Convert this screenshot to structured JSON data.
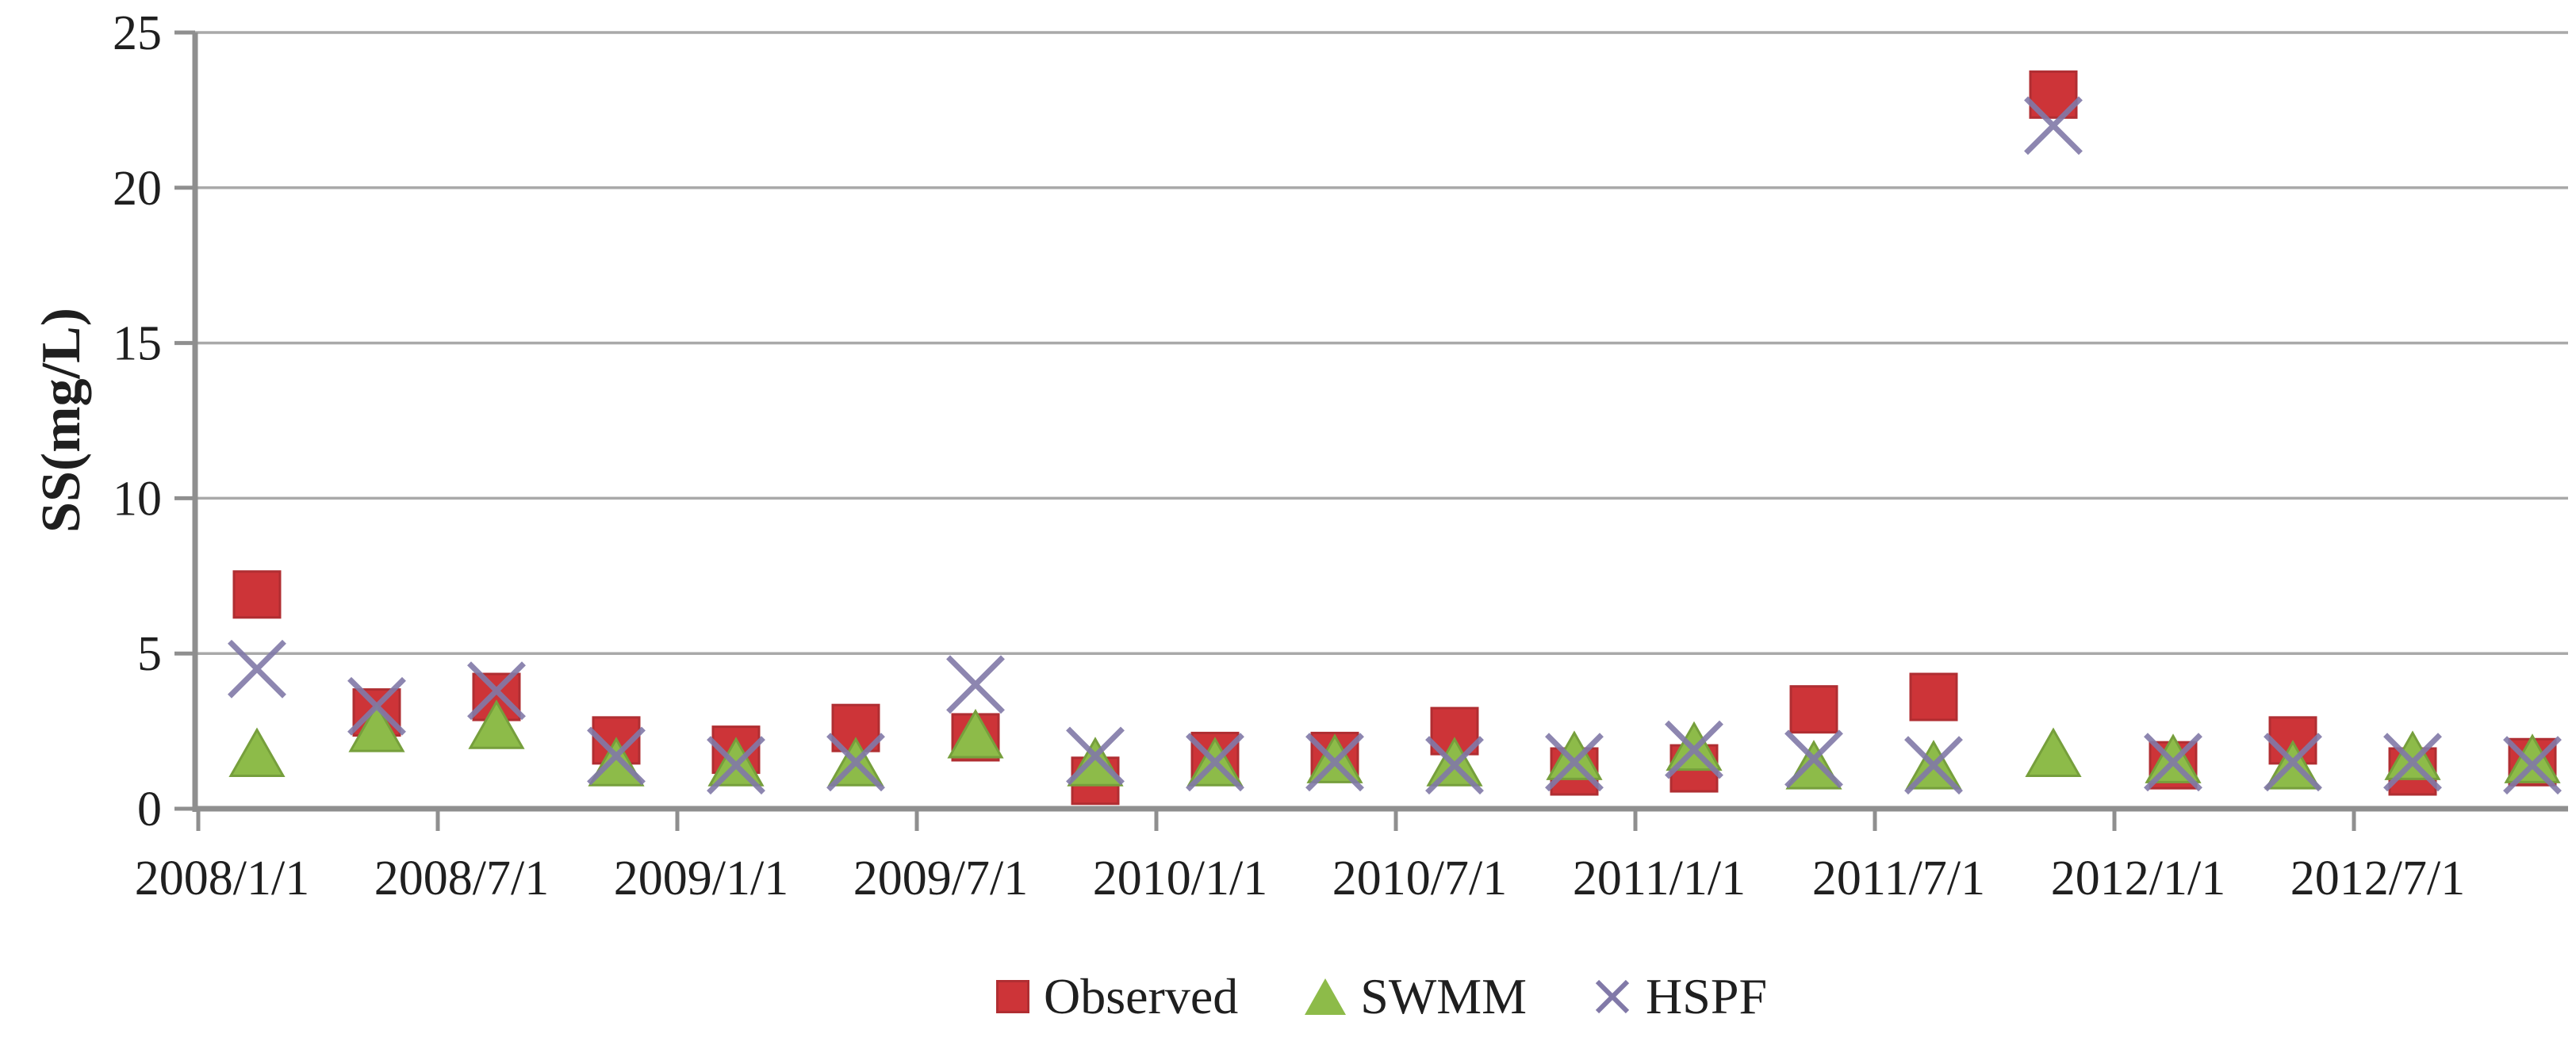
{
  "chart_data": {
    "type": "scatter",
    "title": "",
    "xlabel": "",
    "ylabel": "SS(mg/L)",
    "ylim": [
      0,
      25
    ],
    "y_ticks": [
      0,
      5,
      10,
      15,
      20,
      25
    ],
    "x_tick_labels": [
      "2008/1/1",
      "2008/7/1",
      "2009/1/1",
      "2009/7/1",
      "2010/1/1",
      "2010/7/1",
      "2011/1/1",
      "2011/7/1",
      "2012/1/1",
      "2012/7/1"
    ],
    "grid": "horizontal",
    "legend_position": "bottom",
    "categories": [
      "2008/2",
      "2008/5",
      "2008/8",
      "2008/11",
      "2009/2",
      "2009/5",
      "2009/8",
      "2009/11",
      "2010/2",
      "2010/5",
      "2010/8",
      "2010/11",
      "2011/2",
      "2011/5",
      "2011/8",
      "2011/11",
      "2012/2",
      "2012/5",
      "2012/8",
      "2012/11"
    ],
    "series": [
      {
        "name": "Observed",
        "marker": "square",
        "color": "#cd3438",
        "values": [
          6.9,
          3.1,
          3.6,
          2.2,
          1.9,
          2.6,
          2.3,
          0.9,
          1.7,
          1.7,
          2.5,
          1.2,
          1.3,
          3.2,
          3.6,
          23.0,
          1.4,
          2.2,
          1.2,
          1.5
        ]
      },
      {
        "name": "SWMM",
        "marker": "triangle",
        "color": "#8dbb49",
        "values": [
          1.8,
          2.6,
          2.7,
          1.5,
          1.5,
          1.5,
          2.4,
          1.5,
          1.5,
          1.6,
          1.5,
          1.7,
          2.0,
          1.4,
          1.4,
          1.8,
          1.6,
          1.4,
          1.7,
          1.6
        ]
      },
      {
        "name": "HSPF",
        "marker": "x",
        "color": "#8179a8",
        "values": [
          4.5,
          3.3,
          3.8,
          1.7,
          1.4,
          1.5,
          4.0,
          1.7,
          1.5,
          1.5,
          1.4,
          1.5,
          1.9,
          1.6,
          1.4,
          22.0,
          1.5,
          1.5,
          1.5,
          1.4
        ]
      }
    ],
    "colors": {
      "gridline": "#a9a9a9",
      "axis": "#8f8f8f",
      "text": "#1f1f1f"
    }
  }
}
